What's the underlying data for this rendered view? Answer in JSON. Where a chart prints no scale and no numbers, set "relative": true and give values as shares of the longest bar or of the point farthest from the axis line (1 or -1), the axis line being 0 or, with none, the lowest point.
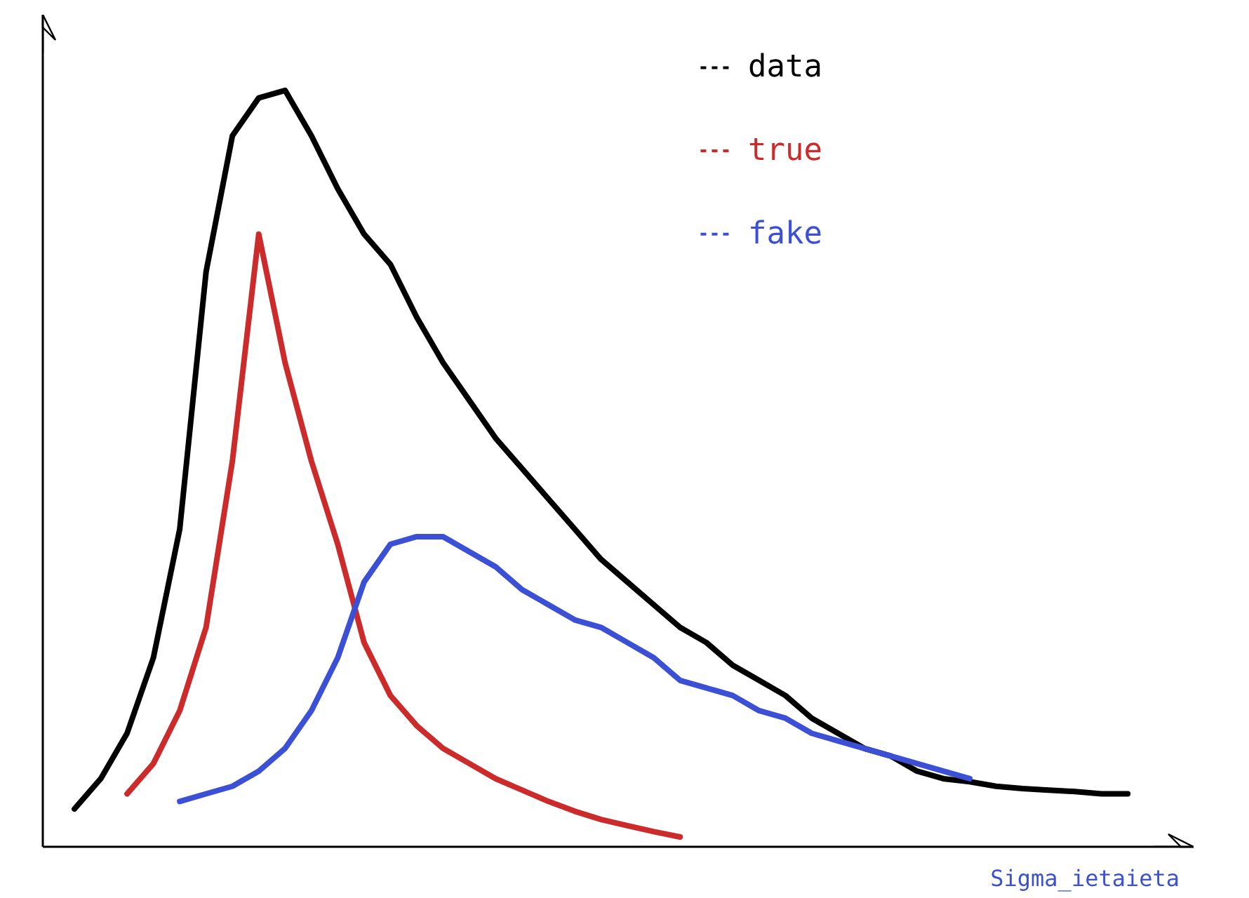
{
  "chart_data": {
    "type": "line",
    "relative": true,
    "xlabel": "Sigma_ietaieta",
    "legend": "top",
    "grid": false,
    "marker": "none",
    "line_style": "solid",
    "categories": [
      null,
      null,
      null,
      null,
      null,
      null,
      null,
      null,
      null,
      null,
      null,
      null,
      null,
      null,
      null,
      null,
      null,
      null,
      null,
      null,
      null,
      null,
      null,
      null,
      null,
      null,
      null,
      null,
      null,
      null,
      null,
      null,
      null,
      null,
      null,
      null,
      null,
      null,
      null,
      null,
      null
    ],
    "series": [
      {
        "name": "data",
        "color": "#000000",
        "values": [
          0.05,
          0.09,
          0.15,
          0.25,
          0.42,
          0.76,
          0.94,
          0.99,
          1.0,
          0.94,
          0.87,
          0.81,
          0.77,
          0.7,
          0.64,
          0.59,
          0.54,
          0.5,
          0.46,
          0.42,
          0.38,
          0.35,
          0.32,
          0.29,
          0.27,
          0.24,
          0.22,
          0.2,
          0.17,
          0.15,
          0.13,
          0.12,
          0.1,
          0.09,
          0.086,
          0.08,
          0.077,
          0.075,
          0.073,
          0.07,
          0.07
        ]
      },
      {
        "name": "true",
        "color": "#cc2b2b",
        "values": [
          null,
          null,
          0.07,
          0.11,
          0.18,
          0.29,
          0.51,
          0.81,
          0.64,
          0.51,
          0.4,
          0.27,
          0.2,
          0.16,
          0.13,
          0.11,
          0.09,
          0.075,
          0.06,
          0.047,
          0.036,
          0.028,
          0.02,
          0.013,
          null,
          null,
          null,
          null,
          null,
          null,
          null,
          null,
          null,
          null,
          null,
          null,
          null,
          null,
          null,
          null,
          null
        ]
      },
      {
        "name": "fake",
        "color": "#3b50d4",
        "values": [
          null,
          null,
          null,
          null,
          0.06,
          0.07,
          0.08,
          0.1,
          0.13,
          0.18,
          0.25,
          0.35,
          0.4,
          0.41,
          0.41,
          0.39,
          0.37,
          0.34,
          0.32,
          0.3,
          0.29,
          0.27,
          0.25,
          0.22,
          0.21,
          0.2,
          0.18,
          0.17,
          0.15,
          0.14,
          0.13,
          0.12,
          0.11,
          0.1,
          0.09,
          null,
          null,
          null,
          null,
          null,
          null
        ]
      }
    ]
  }
}
